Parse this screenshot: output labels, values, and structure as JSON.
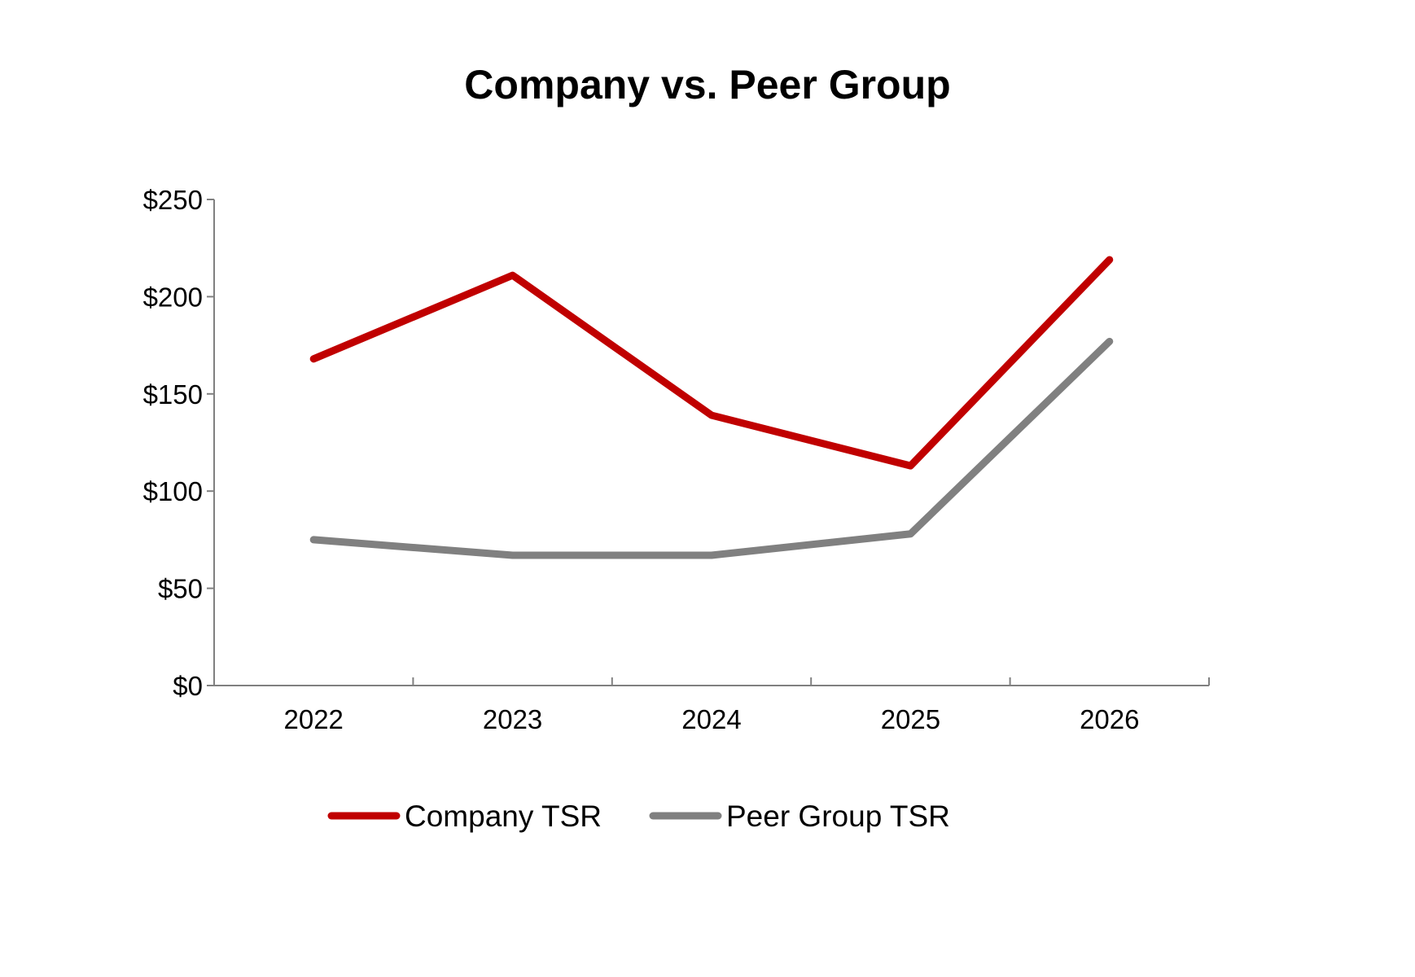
{
  "chart_data": {
    "type": "line",
    "title": "Company vs. Peer Group",
    "xlabel": "",
    "ylabel": "",
    "categories": [
      "2022",
      "2023",
      "2024",
      "2025",
      "2026"
    ],
    "ylim": [
      0,
      250
    ],
    "yticks": [
      0,
      50,
      100,
      150,
      200,
      250
    ],
    "ytick_labels": [
      "$0",
      "$50",
      "$100",
      "$150",
      "$200",
      "$250"
    ],
    "grid": false,
    "legend_position": "bottom",
    "series": [
      {
        "name": "Company TSR",
        "color": "#C00000",
        "values": [
          168,
          211,
          139,
          113,
          219
        ]
      },
      {
        "name": "Peer Group TSR",
        "color": "#808080",
        "values": [
          75,
          67,
          67,
          78,
          177
        ]
      }
    ]
  }
}
